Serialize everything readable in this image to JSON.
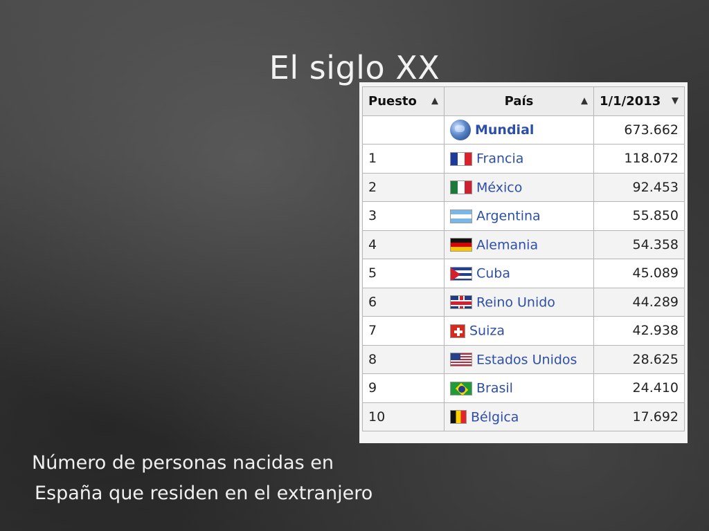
{
  "slide": {
    "title": "El siglo XX",
    "caption_line1": "Número de personas nacidas en",
    "caption_line2": "España que residen en el extranjero"
  },
  "table": {
    "headers": [
      "Puesto",
      "País",
      "1/1/2013"
    ],
    "sort_icons": [
      "sort-both-icon",
      "sort-both-icon",
      "sort-desc-icon"
    ],
    "world_row": {
      "rank": "",
      "country": "Mundial",
      "value": "673.662",
      "icon": "globe-icon"
    },
    "rows": [
      {
        "rank": "1",
        "country": "Francia",
        "value": "118.072",
        "flag": "france-flag-icon"
      },
      {
        "rank": "2",
        "country": "México",
        "value": "92.453",
        "flag": "mexico-flag-icon"
      },
      {
        "rank": "3",
        "country": "Argentina",
        "value": "55.850",
        "flag": "argentina-flag-icon"
      },
      {
        "rank": "4",
        "country": "Alemania",
        "value": "54.358",
        "flag": "germany-flag-icon"
      },
      {
        "rank": "5",
        "country": "Cuba",
        "value": "45.089",
        "flag": "cuba-flag-icon"
      },
      {
        "rank": "6",
        "country": "Reino Unido",
        "value": "44.289",
        "flag": "uk-flag-icon"
      },
      {
        "rank": "7",
        "country": "Suiza",
        "value": "42.938",
        "flag": "switzerland-flag-icon"
      },
      {
        "rank": "8",
        "country": "Estados Unidos",
        "value": "28.625",
        "flag": "usa-flag-icon"
      },
      {
        "rank": "9",
        "country": "Brasil",
        "value": "24.410",
        "flag": "brazil-flag-icon"
      },
      {
        "rank": "10",
        "country": "Bélgica",
        "value": "17.692",
        "flag": "belgium-flag-icon"
      }
    ]
  },
  "colors": {
    "link": "#2d4fa7",
    "background": "#3c3c3c",
    "title_text": "#f2f2f2"
  }
}
